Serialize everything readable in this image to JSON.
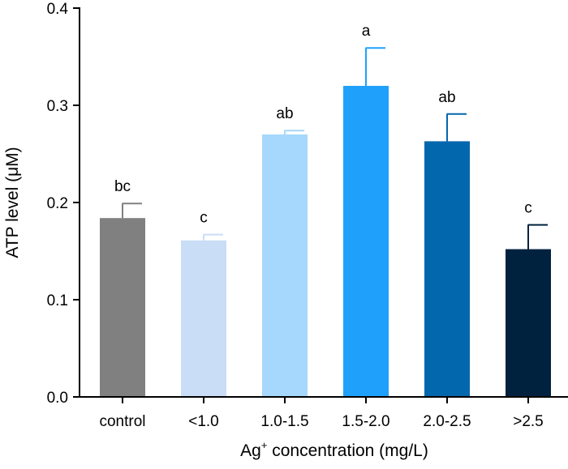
{
  "chart_data": {
    "type": "bar",
    "categories": [
      "control",
      "<1.0",
      "1.0-1.5",
      "1.5-2.0",
      "2.0-2.5",
      ">2.5"
    ],
    "values": [
      0.184,
      0.161,
      0.27,
      0.32,
      0.263,
      0.152
    ],
    "errors": [
      0.015,
      0.006,
      0.004,
      0.039,
      0.028,
      0.025
    ],
    "significance_letters": [
      "bc",
      "c",
      "ab",
      "a",
      "ab",
      "c"
    ],
    "bar_colors": [
      "#808080",
      "#c9def6",
      "#a5d8fc",
      "#1fa1fb",
      "#0367ad",
      "#01223f"
    ],
    "title": "",
    "ylabel": "ATP level (μM)",
    "xlabel": {
      "prefix": "Ag",
      "superscript": "+",
      "suffix": " concentration (mg/L)"
    },
    "ylim": [
      0.0,
      0.4
    ],
    "yticks": [
      "0.0",
      "0.1",
      "0.2",
      "0.3",
      "0.4"
    ],
    "grid": false
  }
}
